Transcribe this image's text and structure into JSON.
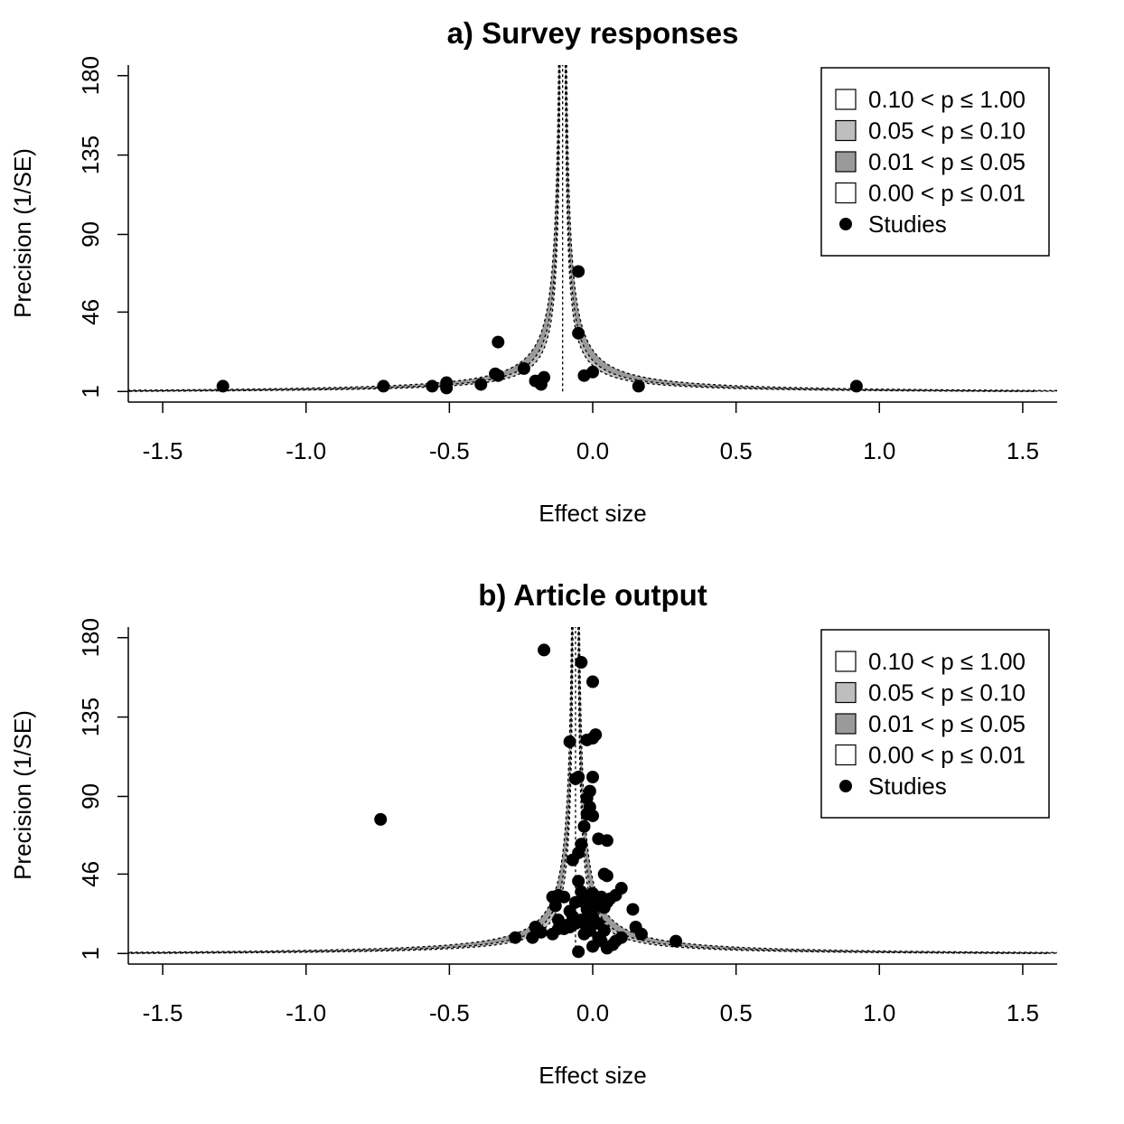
{
  "chart_data": [
    {
      "type": "scatter",
      "title": "a) Survey responses",
      "xlabel": "Effect size",
      "ylabel": "Precision (1/SE)",
      "xlim": [
        -1.62,
        1.62
      ],
      "ylim": [
        -5,
        186
      ],
      "x_ticks": [
        -1.5,
        -1.0,
        -0.5,
        0.0,
        0.5,
        1.0,
        1.5
      ],
      "x_tick_labels": [
        "-1.5",
        "-1.0",
        "-0.5",
        "0.0",
        "0.5",
        "1.0",
        "1.5"
      ],
      "y_ticks": [
        1,
        46,
        90,
        135,
        180
      ],
      "y_tick_labels": [
        "1",
        "46",
        "90",
        "135",
        "180"
      ],
      "center": -0.105,
      "legend_position": "top-right",
      "legend": [
        {
          "label": "0.10 < p ≤ 1.00",
          "fill": "#ffffff",
          "kind": "box"
        },
        {
          "label": "0.05 < p ≤ 0.10",
          "fill": "#bebebe",
          "kind": "box"
        },
        {
          "label": "0.01 < p ≤ 0.05",
          "fill": "#9a9a9a",
          "kind": "box"
        },
        {
          "label": "0.00 < p ≤ 0.01",
          "fill": "#ffffff",
          "kind": "box"
        },
        {
          "label": "Studies",
          "fill": "#000000",
          "kind": "dot"
        }
      ],
      "series": [
        {
          "name": "Studies",
          "points": [
            [
              -1.29,
              4
            ],
            [
              -0.73,
              4
            ],
            [
              -0.56,
              4
            ],
            [
              -0.51,
              3
            ],
            [
              -0.51,
              6
            ],
            [
              -0.39,
              5
            ],
            [
              -0.34,
              11
            ],
            [
              -0.33,
              10
            ],
            [
              -0.33,
              29
            ],
            [
              -0.24,
              14
            ],
            [
              -0.2,
              7
            ],
            [
              -0.18,
              5
            ],
            [
              -0.17,
              9
            ],
            [
              -0.05,
              69
            ],
            [
              -0.05,
              34
            ],
            [
              -0.03,
              10
            ],
            [
              0.0,
              12
            ],
            [
              0.16,
              4
            ],
            [
              0.92,
              4
            ]
          ]
        }
      ]
    },
    {
      "type": "scatter",
      "title": "b) Article output",
      "xlabel": "Effect size",
      "ylabel": "Precision (1/SE)",
      "xlim": [
        -1.62,
        1.62
      ],
      "ylim": [
        -5,
        186
      ],
      "x_ticks": [
        -1.5,
        -1.0,
        -0.5,
        0.0,
        0.5,
        1.0,
        1.5
      ],
      "x_tick_labels": [
        "-1.5",
        "-1.0",
        "-0.5",
        "0.0",
        "0.5",
        "1.0",
        "1.5"
      ],
      "y_ticks": [
        1,
        46,
        90,
        135,
        180
      ],
      "y_tick_labels": [
        "1",
        "46",
        "90",
        "135",
        "180"
      ],
      "center": -0.06,
      "legend_position": "top-right",
      "legend": [
        {
          "label": "0.10 < p ≤ 1.00",
          "fill": "#ffffff",
          "kind": "box"
        },
        {
          "label": "0.05 < p ≤ 0.10",
          "fill": "#bebebe",
          "kind": "box"
        },
        {
          "label": "0.01 < p ≤ 0.05",
          "fill": "#9a9a9a",
          "kind": "box"
        },
        {
          "label": "0.00 < p ≤ 0.01",
          "fill": "#ffffff",
          "kind": "box"
        },
        {
          "label": "Studies",
          "fill": "#000000",
          "kind": "dot"
        }
      ],
      "series": [
        {
          "name": "Studies",
          "points": [
            [
              -0.74,
              77
            ],
            [
              -0.17,
              173
            ],
            [
              -0.08,
              121
            ],
            [
              -0.06,
              100
            ],
            [
              -0.05,
              101
            ],
            [
              -0.07,
              54
            ],
            [
              -0.05,
              58
            ],
            [
              -0.05,
              42
            ],
            [
              -0.04,
              36
            ],
            [
              -0.04,
              31
            ],
            [
              -0.1,
              33
            ],
            [
              -0.12,
              34
            ],
            [
              -0.14,
              33
            ],
            [
              -0.13,
              28
            ],
            [
              -0.12,
              20
            ],
            [
              -0.1,
              15
            ],
            [
              -0.08,
              16
            ],
            [
              -0.06,
              18
            ],
            [
              -0.07,
              22
            ],
            [
              -0.08,
              25
            ],
            [
              -0.04,
              20
            ],
            [
              -0.03,
              18
            ],
            [
              -0.02,
              16
            ],
            [
              -0.01,
              20
            ],
            [
              -0.01,
              33
            ],
            [
              0.0,
              35
            ],
            [
              0.01,
              30
            ],
            [
              0.02,
              28
            ],
            [
              0.03,
              33
            ],
            [
              0.04,
              27
            ],
            [
              0.05,
              30
            ],
            [
              0.06,
              32
            ],
            [
              0.08,
              34
            ],
            [
              0.1,
              38
            ],
            [
              0.14,
              26
            ],
            [
              0.15,
              16
            ],
            [
              0.17,
              12
            ],
            [
              0.1,
              10
            ],
            [
              0.08,
              8
            ],
            [
              0.07,
              6
            ],
            [
              0.05,
              4
            ],
            [
              0.03,
              8
            ],
            [
              0.0,
              5
            ],
            [
              -0.05,
              2
            ],
            [
              -0.03,
              12
            ],
            [
              -0.01,
              14
            ],
            [
              0.02,
              10
            ],
            [
              0.04,
              14
            ],
            [
              0.02,
              18
            ],
            [
              0.0,
              22
            ],
            [
              -0.02,
              26
            ],
            [
              -0.03,
              30
            ],
            [
              -0.06,
              30
            ],
            [
              -0.09,
              17
            ],
            [
              -0.12,
              15
            ],
            [
              -0.14,
              12
            ],
            [
              -0.18,
              13
            ],
            [
              -0.2,
              16
            ],
            [
              -0.21,
              10
            ],
            [
              -0.27,
              10
            ],
            [
              0.29,
              8
            ],
            [
              -0.04,
              63
            ],
            [
              -0.03,
              73
            ],
            [
              -0.02,
              80
            ],
            [
              -0.01,
              84
            ],
            [
              -0.02,
              89
            ],
            [
              -0.01,
              93
            ],
            [
              0.0,
              79
            ],
            [
              0.0,
              101
            ],
            [
              0.02,
              66
            ],
            [
              0.05,
              65
            ],
            [
              0.04,
              46
            ],
            [
              0.05,
              45
            ],
            [
              -0.04,
              166
            ],
            [
              0.0,
              155
            ],
            [
              0.01,
              125
            ],
            [
              0.0,
              123
            ],
            [
              -0.02,
              122
            ]
          ]
        }
      ]
    }
  ]
}
